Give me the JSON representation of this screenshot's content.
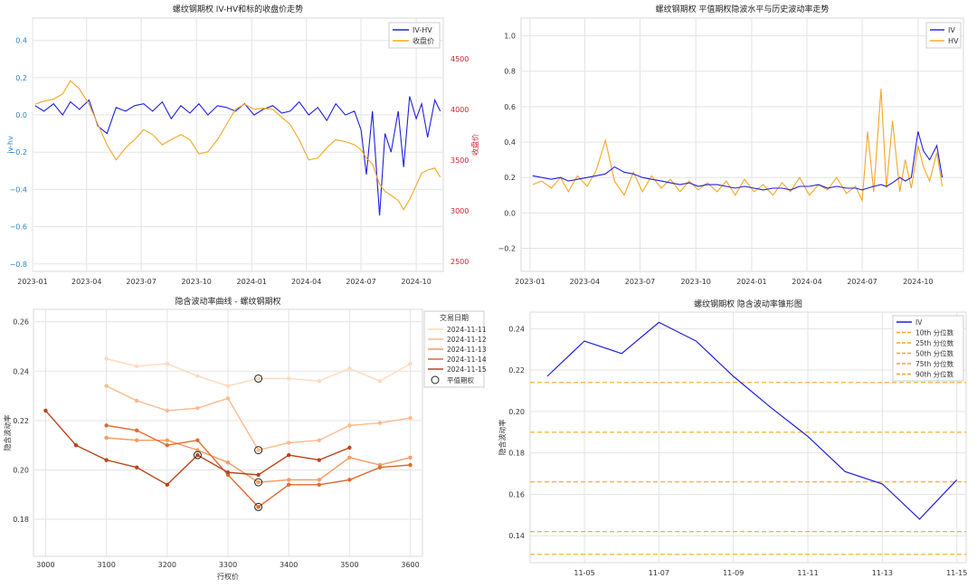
{
  "chart_data": [
    {
      "type": "line",
      "title": "螺纹钢期权 IV-HV和标的收盘价走势",
      "xlabel": "",
      "ylabel_left": "iv-hv",
      "ylabel_right": "收盘价",
      "x_ticks": [
        "2023-01",
        "2023-04",
        "2023-07",
        "2023-10",
        "2024-01",
        "2024-04",
        "2024-07",
        "2024-10"
      ],
      "y_ticks_left": [
        "−0.8",
        "−0.6",
        "−0.4",
        "−0.2",
        "0.0",
        "0.2",
        "0.4"
      ],
      "y_ticks_right": [
        "2500",
        "3000",
        "3500",
        "4000",
        "4500"
      ],
      "x_range": [
        "2023-01-01",
        "2024-11-15"
      ],
      "ylim_left": [
        -0.84,
        0.52
      ],
      "ylim_right": [
        2400,
        4900
      ],
      "legend_position": "top-right",
      "series": [
        {
          "name": "IV-HV",
          "axis": "left",
          "color": "#1f1fe0",
          "x": [
            "2023-01-05",
            "2023-01-20",
            "2023-02-05",
            "2023-02-20",
            "2023-03-05",
            "2023-03-20",
            "2023-04-05",
            "2023-04-20",
            "2023-05-05",
            "2023-05-20",
            "2023-06-05",
            "2023-06-20",
            "2023-07-05",
            "2023-07-20",
            "2023-08-05",
            "2023-08-20",
            "2023-09-05",
            "2023-09-20",
            "2023-10-05",
            "2023-10-20",
            "2023-11-05",
            "2023-11-20",
            "2023-12-05",
            "2023-12-20",
            "2024-01-05",
            "2024-01-20",
            "2024-02-05",
            "2024-02-20",
            "2024-03-05",
            "2024-03-20",
            "2024-04-05",
            "2024-04-20",
            "2024-05-05",
            "2024-05-20",
            "2024-06-05",
            "2024-06-20",
            "2024-07-01",
            "2024-07-10",
            "2024-07-20",
            "2024-08-01",
            "2024-08-10",
            "2024-08-20",
            "2024-09-01",
            "2024-09-10",
            "2024-09-20",
            "2024-10-01",
            "2024-10-10",
            "2024-10-20",
            "2024-11-01",
            "2024-11-10"
          ],
          "values": [
            0.05,
            0.02,
            0.06,
            0.0,
            0.07,
            0.03,
            0.08,
            -0.06,
            -0.1,
            0.04,
            0.02,
            0.05,
            0.06,
            0.02,
            0.07,
            -0.02,
            0.05,
            0.01,
            0.06,
            0.0,
            0.05,
            0.04,
            0.02,
            0.06,
            0.0,
            0.03,
            0.05,
            0.01,
            0.02,
            0.07,
            0.0,
            0.04,
            -0.03,
            0.06,
            0.0,
            0.02,
            -0.08,
            -0.32,
            0.02,
            -0.54,
            -0.1,
            -0.2,
            0.02,
            -0.28,
            0.1,
            -0.02,
            0.06,
            -0.12,
            0.08,
            0.02
          ]
        },
        {
          "name": "收盘价",
          "axis": "right",
          "color": "#f5a623",
          "x": [
            "2023-01-05",
            "2023-01-20",
            "2023-02-05",
            "2023-02-20",
            "2023-03-05",
            "2023-03-20",
            "2023-04-05",
            "2023-04-20",
            "2023-05-05",
            "2023-05-20",
            "2023-06-05",
            "2023-06-20",
            "2023-07-05",
            "2023-07-20",
            "2023-08-05",
            "2023-08-20",
            "2023-09-05",
            "2023-09-20",
            "2023-10-05",
            "2023-10-20",
            "2023-11-05",
            "2023-11-20",
            "2023-12-05",
            "2023-12-20",
            "2024-01-05",
            "2024-01-20",
            "2024-02-05",
            "2024-02-20",
            "2024-03-05",
            "2024-03-20",
            "2024-04-05",
            "2024-04-20",
            "2024-05-05",
            "2024-05-20",
            "2024-06-05",
            "2024-06-20",
            "2024-07-01",
            "2024-07-10",
            "2024-07-20",
            "2024-08-01",
            "2024-08-10",
            "2024-08-20",
            "2024-09-01",
            "2024-09-10",
            "2024-09-20",
            "2024-10-01",
            "2024-10-10",
            "2024-10-20",
            "2024-11-01",
            "2024-11-10"
          ],
          "values": [
            4050,
            4080,
            4100,
            4150,
            4280,
            4200,
            4050,
            3850,
            3650,
            3500,
            3620,
            3700,
            3800,
            3750,
            3650,
            3700,
            3750,
            3700,
            3560,
            3580,
            3700,
            3850,
            4000,
            4050,
            4000,
            4010,
            4000,
            3920,
            3850,
            3700,
            3500,
            3520,
            3620,
            3700,
            3680,
            3650,
            3600,
            3520,
            3460,
            3260,
            3190,
            3150,
            3100,
            3010,
            3110,
            3250,
            3370,
            3400,
            3420,
            3330
          ]
        }
      ]
    },
    {
      "type": "line",
      "title": "螺纹钢期权 平值期权隐波水平与历史波动率走势",
      "xlabel": "",
      "ylabel": "",
      "x_ticks": [
        "2023-01",
        "2023-04",
        "2023-07",
        "2023-10",
        "2024-01",
        "2024-04",
        "2024-07",
        "2024-10"
      ],
      "y_ticks": [
        "−0.2",
        "0.0",
        "0.2",
        "0.4",
        "0.6",
        "0.8",
        "1.0"
      ],
      "x_range": [
        "2023-01-01",
        "2024-11-15"
      ],
      "ylim": [
        -0.33,
        1.1
      ],
      "legend_position": "top-right",
      "series": [
        {
          "name": "IV",
          "color": "#1f1fe0",
          "x": [
            "2023-01-05",
            "2023-01-20",
            "2023-02-05",
            "2023-02-20",
            "2023-03-05",
            "2023-03-20",
            "2023-04-05",
            "2023-04-20",
            "2023-05-05",
            "2023-05-20",
            "2023-06-05",
            "2023-06-20",
            "2023-07-05",
            "2023-07-20",
            "2023-08-05",
            "2023-08-20",
            "2023-09-05",
            "2023-09-20",
            "2023-10-05",
            "2023-10-20",
            "2023-11-05",
            "2023-11-20",
            "2023-12-05",
            "2023-12-20",
            "2024-01-05",
            "2024-01-20",
            "2024-02-05",
            "2024-02-20",
            "2024-03-05",
            "2024-03-20",
            "2024-04-05",
            "2024-04-20",
            "2024-05-05",
            "2024-05-20",
            "2024-06-05",
            "2024-06-20",
            "2024-07-01",
            "2024-07-10",
            "2024-07-20",
            "2024-08-01",
            "2024-08-10",
            "2024-08-20",
            "2024-09-01",
            "2024-09-10",
            "2024-09-20",
            "2024-10-01",
            "2024-10-10",
            "2024-10-20",
            "2024-11-01",
            "2024-11-10"
          ],
          "values": [
            0.21,
            0.2,
            0.19,
            0.2,
            0.18,
            0.19,
            0.2,
            0.21,
            0.22,
            0.26,
            0.23,
            0.22,
            0.2,
            0.19,
            0.18,
            0.17,
            0.16,
            0.17,
            0.15,
            0.16,
            0.16,
            0.15,
            0.14,
            0.15,
            0.14,
            0.13,
            0.14,
            0.14,
            0.13,
            0.15,
            0.15,
            0.16,
            0.14,
            0.15,
            0.14,
            0.14,
            0.13,
            0.14,
            0.15,
            0.16,
            0.15,
            0.17,
            0.2,
            0.18,
            0.2,
            0.46,
            0.35,
            0.3,
            0.38,
            0.2
          ]
        },
        {
          "name": "HV",
          "color": "#f5a623",
          "x": [
            "2023-01-05",
            "2023-01-20",
            "2023-02-05",
            "2023-02-20",
            "2023-03-05",
            "2023-03-20",
            "2023-04-05",
            "2023-04-20",
            "2023-05-05",
            "2023-05-20",
            "2023-06-05",
            "2023-06-20",
            "2023-07-05",
            "2023-07-20",
            "2023-08-05",
            "2023-08-20",
            "2023-09-05",
            "2023-09-20",
            "2023-10-05",
            "2023-10-20",
            "2023-11-05",
            "2023-11-20",
            "2023-12-05",
            "2023-12-20",
            "2024-01-05",
            "2024-01-20",
            "2024-02-05",
            "2024-02-20",
            "2024-03-05",
            "2024-03-20",
            "2024-04-05",
            "2024-04-20",
            "2024-05-05",
            "2024-05-20",
            "2024-06-05",
            "2024-06-20",
            "2024-07-01",
            "2024-07-10",
            "2024-07-20",
            "2024-08-01",
            "2024-08-10",
            "2024-08-20",
            "2024-09-01",
            "2024-09-10",
            "2024-09-20",
            "2024-10-01",
            "2024-10-10",
            "2024-10-20",
            "2024-11-01",
            "2024-11-10"
          ],
          "values": [
            0.16,
            0.18,
            0.14,
            0.2,
            0.12,
            0.21,
            0.15,
            0.24,
            0.41,
            0.18,
            0.1,
            0.23,
            0.12,
            0.21,
            0.14,
            0.19,
            0.12,
            0.18,
            0.13,
            0.17,
            0.12,
            0.18,
            0.1,
            0.19,
            0.12,
            0.16,
            0.1,
            0.17,
            0.12,
            0.2,
            0.1,
            0.16,
            0.13,
            0.2,
            0.11,
            0.15,
            0.07,
            0.46,
            0.12,
            0.7,
            0.14,
            0.52,
            0.12,
            0.3,
            0.14,
            0.38,
            0.26,
            0.18,
            0.34,
            0.15
          ]
        }
      ]
    },
    {
      "type": "line",
      "title": "隐含波动率曲线 - 螺纹钢期权",
      "xlabel": "行权价",
      "ylabel": "隐含波动率",
      "legend_title": "交易日期",
      "legend_position": "top-right",
      "x_ticks": [
        "3000",
        "3100",
        "3200",
        "3300",
        "3400",
        "3500",
        "3600"
      ],
      "y_ticks": [
        "0.18",
        "0.20",
        "0.22",
        "0.24",
        "0.26"
      ],
      "xlim": [
        2980,
        3620
      ],
      "ylim": [
        0.165,
        0.265
      ],
      "marker_label": "平值期权",
      "series": [
        {
          "name": "2024-11-11",
          "color": "#fdd9bc",
          "x": [
            3100,
            3150,
            3200,
            3250,
            3300,
            3350,
            3400,
            3450,
            3500,
            3550,
            3600
          ],
          "values": [
            0.245,
            0.242,
            0.243,
            0.238,
            0.234,
            0.237,
            0.237,
            0.236,
            0.241,
            0.236,
            0.243
          ],
          "atm_strike": 3350
        },
        {
          "name": "2024-11-12",
          "color": "#fdb98b",
          "x": [
            3100,
            3150,
            3200,
            3250,
            3300,
            3350,
            3400,
            3450,
            3500,
            3550,
            3600
          ],
          "values": [
            0.234,
            0.228,
            0.224,
            0.225,
            0.229,
            0.208,
            0.211,
            0.212,
            0.218,
            0.219,
            0.221
          ],
          "atm_strike": 3350
        },
        {
          "name": "2024-11-13",
          "color": "#f59a5e",
          "x": [
            3100,
            3150,
            3200,
            3250,
            3300,
            3350,
            3400,
            3450,
            3500,
            3550,
            3600
          ],
          "values": [
            0.213,
            0.212,
            0.212,
            0.208,
            0.203,
            0.195,
            0.196,
            0.196,
            0.205,
            0.202,
            0.205
          ],
          "atm_strike": 3350
        },
        {
          "name": "2024-11-14",
          "color": "#e06a2e",
          "x": [
            3100,
            3150,
            3200,
            3250,
            3300,
            3350,
            3400,
            3450,
            3500,
            3550,
            3600
          ],
          "values": [
            0.218,
            0.216,
            0.21,
            0.212,
            0.198,
            0.185,
            0.194,
            0.194,
            0.196,
            0.201,
            0.202
          ],
          "atm_strike": 3350
        },
        {
          "name": "2024-11-15",
          "color": "#b8441a",
          "x": [
            3000,
            3050,
            3100,
            3150,
            3200,
            3250,
            3300,
            3350,
            3400,
            3450,
            3500
          ],
          "values": [
            0.224,
            0.21,
            0.204,
            0.201,
            0.194,
            0.206,
            0.199,
            0.198,
            0.206,
            0.204,
            0.209
          ],
          "atm_strike": 3250
        }
      ]
    },
    {
      "type": "line",
      "title": "螺纹钢期权 隐含波动率锥形图",
      "xlabel": "",
      "ylabel": "隐含波动率",
      "legend_position": "top-right",
      "x_ticks": [
        "11-05",
        "11-07",
        "11-09",
        "11-11",
        "11-13",
        "11-15"
      ],
      "y_ticks": [
        "0.14",
        "0.16",
        "0.18",
        "0.20",
        "0.22",
        "0.24"
      ],
      "xlim": [
        "2024-11-03 13:00",
        "2024-11-15 06:00"
      ],
      "ylim": [
        0.127,
        0.248
      ],
      "series": [
        {
          "name": "IV",
          "color": "#1f1fe0",
          "x": [
            "2024-11-04",
            "2024-11-05",
            "2024-11-06",
            "2024-11-07",
            "2024-11-08",
            "2024-11-09",
            "2024-11-10",
            "2024-11-11",
            "2024-11-12",
            "2024-11-13",
            "2024-11-14",
            "2024-11-15"
          ],
          "values": [
            0.217,
            0.234,
            0.228,
            0.243,
            0.234,
            0.217,
            0.202,
            0.188,
            0.171,
            0.165,
            0.148,
            0.167
          ]
        }
      ],
      "percentiles": [
        {
          "name": "10th 分位数",
          "value": 0.131,
          "color": "#f5a623"
        },
        {
          "name": "25th 分位数",
          "value": 0.142,
          "color": "#f5a623"
        },
        {
          "name": "50th 分位数",
          "value": 0.166,
          "color": "#f5a623"
        },
        {
          "name": "75th 分位数",
          "value": 0.19,
          "color": "#f5a623"
        },
        {
          "name": "90th 分位数",
          "value": 0.214,
          "color": "#f5a623"
        }
      ]
    }
  ]
}
